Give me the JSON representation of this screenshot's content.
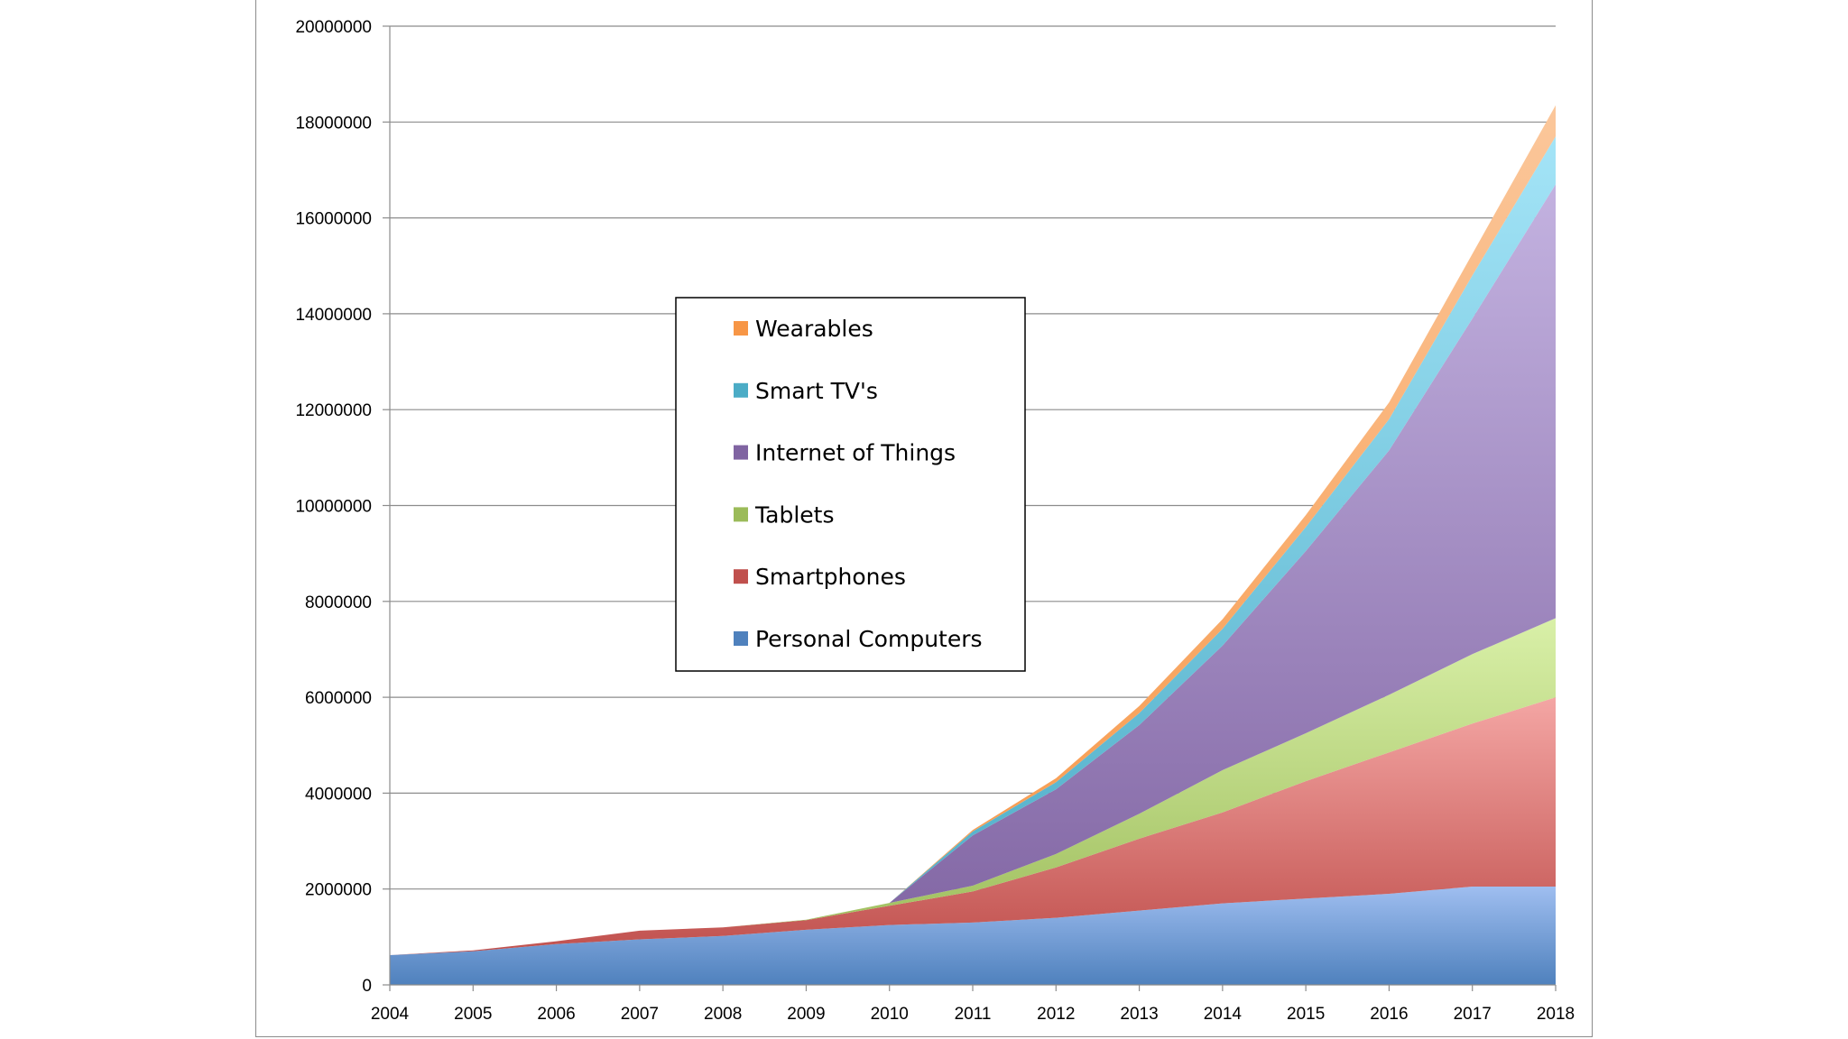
{
  "chart_data": {
    "type": "area",
    "stacked": true,
    "x": [
      "2004",
      "2005",
      "2006",
      "2007",
      "2008",
      "2009",
      "2010",
      "2011",
      "2012",
      "2013",
      "2014",
      "2015",
      "2016",
      "2017",
      "2018"
    ],
    "ylim": [
      0,
      20000000
    ],
    "yticks": [
      "0",
      "2000000",
      "4000000",
      "6000000",
      "8000000",
      "10000000",
      "12000000",
      "14000000",
      "16000000",
      "18000000",
      "20000000"
    ],
    "grid": true,
    "legend_position": "center-left",
    "series": [
      {
        "name": "Personal Computers",
        "color": "#4f81bd",
        "light": "#9fbef0",
        "values": [
          620000,
          700000,
          850000,
          950000,
          1020000,
          1150000,
          1250000,
          1300000,
          1400000,
          1550000,
          1700000,
          1800000,
          1900000,
          2050000,
          2050000
        ]
      },
      {
        "name": "Smartphones",
        "color": "#c0504d",
        "light": "#f4a6a4",
        "values": [
          0,
          20000,
          60000,
          180000,
          180000,
          200000,
          400000,
          650000,
          1050000,
          1500000,
          1900000,
          2450000,
          2950000,
          3400000,
          3950000
        ]
      },
      {
        "name": "Tablets",
        "color": "#9bbb59",
        "light": "#d9f0a8",
        "values": [
          0,
          0,
          0,
          0,
          0,
          10000,
          60000,
          120000,
          280000,
          520000,
          880000,
          1000000,
          1200000,
          1450000,
          1650000
        ]
      },
      {
        "name": "Internet of Things",
        "color": "#8064a2",
        "light": "#c3b2e0",
        "values": [
          0,
          0,
          0,
          0,
          0,
          0,
          0,
          1050000,
          1350000,
          1850000,
          2600000,
          3800000,
          5100000,
          7000000,
          9050000
        ]
      },
      {
        "name": "Smart TV's",
        "color": "#4bacc6",
        "light": "#a4e4f7",
        "values": [
          0,
          0,
          0,
          0,
          0,
          0,
          0,
          80000,
          150000,
          250000,
          350000,
          500000,
          650000,
          900000,
          1000000
        ]
      },
      {
        "name": "Wearables",
        "color": "#f79646",
        "light": "#fbc79b",
        "values": [
          0,
          0,
          0,
          0,
          0,
          0,
          0,
          30000,
          80000,
          150000,
          200000,
          250000,
          350000,
          450000,
          650000
        ]
      }
    ]
  }
}
